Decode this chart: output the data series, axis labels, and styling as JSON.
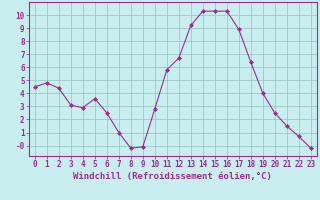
{
  "x": [
    0,
    1,
    2,
    3,
    4,
    5,
    6,
    7,
    8,
    9,
    10,
    11,
    12,
    13,
    14,
    15,
    16,
    17,
    18,
    19,
    20,
    21,
    22,
    23
  ],
  "y": [
    4.5,
    4.8,
    4.4,
    3.1,
    2.9,
    3.6,
    2.5,
    1.0,
    -0.2,
    -0.1,
    2.8,
    5.8,
    6.7,
    9.2,
    10.3,
    10.3,
    10.3,
    8.9,
    6.4,
    4.0,
    2.5,
    1.5,
    0.7,
    -0.2
  ],
  "line_color": "#9b2d8e",
  "marker": "D",
  "marker_size": 2,
  "bg_color": "#c8eef0",
  "grid_color": "#9bbfc0",
  "xlabel": "Windchill (Refroidissement éolien,°C)",
  "ylim": [
    -0.8,
    11.0
  ],
  "xlim": [
    -0.5,
    23.5
  ],
  "xticks": [
    0,
    1,
    2,
    3,
    4,
    5,
    6,
    7,
    8,
    9,
    10,
    11,
    12,
    13,
    14,
    15,
    16,
    17,
    18,
    19,
    20,
    21,
    22,
    23
  ],
  "yticks": [
    0,
    1,
    2,
    3,
    4,
    5,
    6,
    7,
    8,
    9,
    10
  ],
  "tick_label_color": "#9b2d8e",
  "axis_color": "#9b2d8e",
  "label_fontsize": 6.5,
  "tick_fontsize": 5.5
}
